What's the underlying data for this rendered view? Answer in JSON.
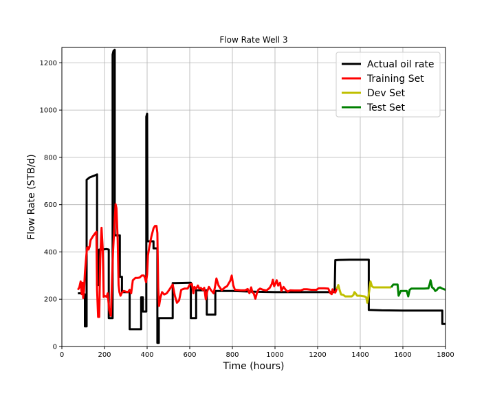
{
  "chart_data": {
    "type": "line",
    "title": "Flow Rate Well 3",
    "xlabel": "Time (hours)",
    "ylabel": "Flow Rate (STB/d)",
    "xlim": [
      0,
      1800
    ],
    "ylim": [
      0,
      1265
    ],
    "xticks": [
      0,
      200,
      400,
      600,
      800,
      1000,
      1200,
      1400,
      1600,
      1800
    ],
    "yticks": [
      0,
      200,
      400,
      600,
      800,
      1000,
      1200
    ],
    "grid": true,
    "legend_position": "top-right",
    "series": [
      {
        "name": "Actual oil rate",
        "color": "#000000",
        "stroke_width": 3,
        "points": [
          [
            75,
            225
          ],
          [
            100,
            225
          ],
          [
            108,
            220
          ],
          [
            108,
            85
          ],
          [
            116,
            85
          ],
          [
            116,
            705
          ],
          [
            130,
            715
          ],
          [
            150,
            722
          ],
          [
            165,
            728
          ],
          [
            165,
            260
          ],
          [
            175,
            260
          ],
          [
            175,
            410
          ],
          [
            190,
            410
          ],
          [
            210,
            412
          ],
          [
            220,
            410
          ],
          [
            220,
            120
          ],
          [
            238,
            120
          ],
          [
            238,
            1235
          ],
          [
            242,
            1250
          ],
          [
            248,
            1255
          ],
          [
            248,
            470
          ],
          [
            255,
            470
          ],
          [
            258,
            472
          ],
          [
            265,
            470
          ],
          [
            272,
            470
          ],
          [
            272,
            295
          ],
          [
            282,
            295
          ],
          [
            282,
            230
          ],
          [
            300,
            230
          ],
          [
            318,
            230
          ],
          [
            318,
            73
          ],
          [
            372,
            73
          ],
          [
            372,
            208
          ],
          [
            380,
            208
          ],
          [
            380,
            148
          ],
          [
            396,
            148
          ],
          [
            396,
            972
          ],
          [
            400,
            985
          ],
          [
            402,
            445
          ],
          [
            430,
            445
          ],
          [
            430,
            415
          ],
          [
            440,
            415
          ],
          [
            448,
            415
          ],
          [
            448,
            15
          ],
          [
            455,
            15
          ],
          [
            455,
            120
          ],
          [
            520,
            120
          ],
          [
            520,
            268
          ],
          [
            600,
            270
          ],
          [
            605,
            270
          ],
          [
            605,
            120
          ],
          [
            630,
            120
          ],
          [
            630,
            238
          ],
          [
            650,
            238
          ],
          [
            680,
            238
          ],
          [
            680,
            135
          ],
          [
            720,
            135
          ],
          [
            720,
            235
          ],
          [
            800,
            235
          ],
          [
            900,
            232
          ],
          [
            1000,
            230
          ],
          [
            1280,
            230
          ],
          [
            1283,
            365
          ],
          [
            1300,
            366
          ],
          [
            1350,
            367
          ],
          [
            1400,
            367
          ],
          [
            1440,
            367
          ],
          [
            1440,
            155
          ],
          [
            1500,
            153
          ],
          [
            1600,
            152
          ],
          [
            1700,
            152
          ],
          [
            1785,
            152
          ],
          [
            1785,
            95
          ],
          [
            1800,
            95
          ]
        ]
      },
      {
        "name": "Training Set",
        "color": "#ff0000",
        "stroke_width": 3,
        "points": [
          [
            75,
            240
          ],
          [
            82,
            250
          ],
          [
            88,
            275
          ],
          [
            93,
            222
          ],
          [
            97,
            270
          ],
          [
            100,
            205
          ],
          [
            104,
            235
          ],
          [
            108,
            312
          ],
          [
            113,
            365
          ],
          [
            118,
            418
          ],
          [
            122,
            420
          ],
          [
            125,
            410
          ],
          [
            130,
            422
          ],
          [
            135,
            450
          ],
          [
            145,
            465
          ],
          [
            155,
            478
          ],
          [
            162,
            485
          ],
          [
            165,
            240
          ],
          [
            170,
            125
          ],
          [
            175,
            125
          ],
          [
            180,
            370
          ],
          [
            186,
            502
          ],
          [
            192,
            410
          ],
          [
            196,
            210
          ],
          [
            200,
            215
          ],
          [
            210,
            210
          ],
          [
            215,
            225
          ],
          [
            222,
            155
          ],
          [
            230,
            130
          ],
          [
            236,
            300
          ],
          [
            240,
            400
          ],
          [
            247,
            520
          ],
          [
            252,
            602
          ],
          [
            256,
            585
          ],
          [
            262,
            450
          ],
          [
            266,
            260
          ],
          [
            270,
            230
          ],
          [
            275,
            215
          ],
          [
            282,
            228
          ],
          [
            290,
            235
          ],
          [
            300,
            232
          ],
          [
            310,
            230
          ],
          [
            318,
            240
          ],
          [
            325,
            225
          ],
          [
            333,
            280
          ],
          [
            345,
            290
          ],
          [
            355,
            290
          ],
          [
            365,
            292
          ],
          [
            375,
            300
          ],
          [
            385,
            300
          ],
          [
            390,
            290
          ],
          [
            395,
            272
          ],
          [
            400,
            305
          ],
          [
            404,
            385
          ],
          [
            410,
            420
          ],
          [
            420,
            465
          ],
          [
            430,
            500
          ],
          [
            437,
            510
          ],
          [
            444,
            510
          ],
          [
            448,
            480
          ],
          [
            452,
            250
          ],
          [
            456,
            172
          ],
          [
            462,
            205
          ],
          [
            470,
            230
          ],
          [
            480,
            220
          ],
          [
            492,
            225
          ],
          [
            500,
            235
          ],
          [
            520,
            262
          ],
          [
            530,
            215
          ],
          [
            540,
            185
          ],
          [
            550,
            195
          ],
          [
            560,
            240
          ],
          [
            575,
            245
          ],
          [
            590,
            245
          ],
          [
            600,
            262
          ],
          [
            610,
            265
          ],
          [
            617,
            225
          ],
          [
            622,
            252
          ],
          [
            630,
            245
          ],
          [
            638,
            258
          ],
          [
            645,
            245
          ],
          [
            652,
            248
          ],
          [
            660,
            240
          ],
          [
            668,
            248
          ],
          [
            675,
            200
          ],
          [
            682,
            233
          ],
          [
            690,
            252
          ],
          [
            700,
            238
          ],
          [
            712,
            225
          ],
          [
            718,
            250
          ],
          [
            725,
            288
          ],
          [
            735,
            258
          ],
          [
            750,
            238
          ],
          [
            765,
            250
          ],
          [
            775,
            255
          ],
          [
            790,
            278
          ],
          [
            797,
            300
          ],
          [
            804,
            260
          ],
          [
            812,
            240
          ],
          [
            840,
            238
          ],
          [
            860,
            238
          ],
          [
            872,
            243
          ],
          [
            880,
            225
          ],
          [
            888,
            250
          ],
          [
            895,
            228
          ],
          [
            900,
            225
          ],
          [
            908,
            202
          ],
          [
            915,
            225
          ],
          [
            922,
            240
          ],
          [
            930,
            245
          ],
          [
            944,
            240
          ],
          [
            960,
            237
          ],
          [
            975,
            248
          ],
          [
            985,
            265
          ],
          [
            990,
            282
          ],
          [
            996,
            255
          ],
          [
            1000,
            262
          ],
          [
            1008,
            280
          ],
          [
            1015,
            258
          ],
          [
            1024,
            270
          ],
          [
            1030,
            235
          ],
          [
            1040,
            252
          ],
          [
            1050,
            240
          ],
          [
            1060,
            232
          ],
          [
            1072,
            238
          ],
          [
            1090,
            237
          ],
          [
            1120,
            237
          ],
          [
            1135,
            242
          ],
          [
            1150,
            242
          ],
          [
            1170,
            240
          ],
          [
            1195,
            240
          ],
          [
            1205,
            246
          ],
          [
            1230,
            246
          ],
          [
            1250,
            245
          ],
          [
            1260,
            225
          ],
          [
            1266,
            222
          ],
          [
            1270,
            242
          ],
          [
            1276,
            232
          ],
          [
            1283,
            228
          ],
          [
            1290,
            245
          ]
        ]
      },
      {
        "name": "Dev Set",
        "color": "#bfbf00",
        "stroke_width": 3,
        "points": [
          [
            1290,
            245
          ],
          [
            1297,
            260
          ],
          [
            1303,
            240
          ],
          [
            1310,
            220
          ],
          [
            1320,
            218
          ],
          [
            1330,
            212
          ],
          [
            1345,
            212
          ],
          [
            1360,
            212
          ],
          [
            1368,
            218
          ],
          [
            1373,
            230
          ],
          [
            1378,
            225
          ],
          [
            1385,
            215
          ],
          [
            1400,
            215
          ],
          [
            1420,
            212
          ],
          [
            1428,
            208
          ],
          [
            1433,
            185
          ],
          [
            1438,
            210
          ],
          [
            1443,
            240
          ],
          [
            1448,
            275
          ],
          [
            1455,
            255
          ],
          [
            1462,
            250
          ],
          [
            1470,
            250
          ],
          [
            1500,
            250
          ],
          [
            1530,
            250
          ],
          [
            1545,
            250
          ]
        ]
      },
      {
        "name": "Test Set",
        "color": "#008000",
        "stroke_width": 3,
        "points": [
          [
            1545,
            250
          ],
          [
            1555,
            262
          ],
          [
            1565,
            262
          ],
          [
            1575,
            262
          ],
          [
            1580,
            215
          ],
          [
            1590,
            235
          ],
          [
            1605,
            235
          ],
          [
            1618,
            235
          ],
          [
            1625,
            212
          ],
          [
            1632,
            240
          ],
          [
            1640,
            245
          ],
          [
            1660,
            245
          ],
          [
            1680,
            245
          ],
          [
            1700,
            245
          ],
          [
            1720,
            246
          ],
          [
            1725,
            262
          ],
          [
            1730,
            280
          ],
          [
            1737,
            250
          ],
          [
            1745,
            245
          ],
          [
            1752,
            235
          ],
          [
            1760,
            240
          ],
          [
            1767,
            248
          ],
          [
            1775,
            250
          ],
          [
            1782,
            246
          ],
          [
            1790,
            243
          ],
          [
            1800,
            240
          ]
        ]
      }
    ]
  }
}
